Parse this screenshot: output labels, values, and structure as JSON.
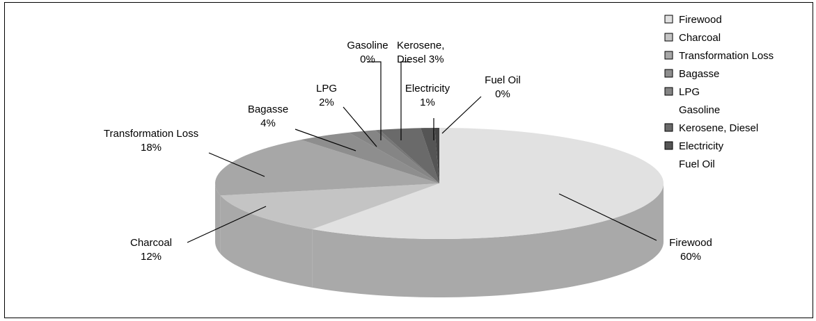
{
  "chart_data": {
    "type": "pie",
    "title": "",
    "categories": [
      "Firewood",
      "Charcoal",
      "Transformation Loss",
      "Bagasse",
      "LPG",
      "Gasoline",
      "Kerosene, Diesel",
      "Electricity",
      "Fuel Oil"
    ],
    "values": [
      60,
      12,
      18,
      4,
      2,
      0,
      3,
      1,
      0
    ],
    "labels": [
      {
        "line1": "Firewood",
        "line2": "60%"
      },
      {
        "line1": "Charcoal",
        "line2": "12%"
      },
      {
        "line1": "Transformation Loss",
        "line2": "18%"
      },
      {
        "line1": "Bagasse",
        "line2": "4%"
      },
      {
        "line1": "LPG",
        "line2": "2%"
      },
      {
        "line1": "Gasoline",
        "line2": "0%"
      },
      {
        "line1": "Kerosene,",
        "line2": "Diesel 3%"
      },
      {
        "line1": "Electricity",
        "line2": "1%"
      },
      {
        "line1": "Fuel Oil",
        "line2": "0%"
      }
    ],
    "colors": [
      "#e1e1e1",
      "#c4c4c4",
      "#a7a7a7",
      "#8e8e8e",
      "#858585",
      "#777777",
      "#6a6a6a",
      "#555555",
      "#444444"
    ],
    "legend": {
      "position": "right",
      "entries": [
        "Firewood",
        "Charcoal",
        "Transformation Loss",
        "Bagasse",
        "LPG",
        "Gasoline",
        "Kerosene, Diesel",
        "Electricity",
        "Fuel Oil"
      ],
      "swatch_shown": [
        true,
        true,
        true,
        true,
        true,
        false,
        true,
        true,
        false
      ]
    },
    "style": "3d",
    "grid": false
  }
}
